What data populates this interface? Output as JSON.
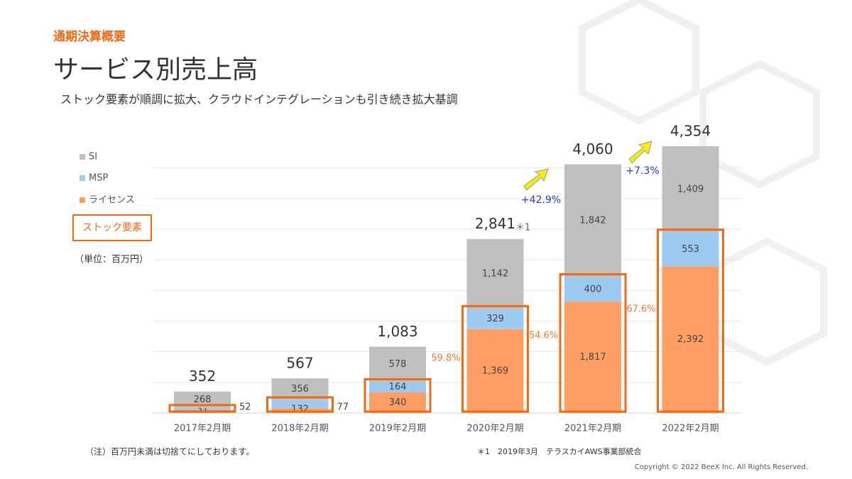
{
  "header": {
    "section": "通期決算概要",
    "title": "サービス別売上高",
    "subtitle": "ストック要素が順調に拡大、クラウドインテグレーションも引き続き拡大基調"
  },
  "chart_data": {
    "type": "stacked_bar",
    "categories": [
      "2017年2月期",
      "2018年2月期",
      "2019年2月期",
      "2020年2月期",
      "2021年2月期",
      "2022年2月期"
    ],
    "series": [
      {
        "name": "ライセンス",
        "color": "#ff9f66",
        "values": [
          52,
          77,
          340,
          1369,
          1817,
          2392
        ],
        "value_labels": [
          "52",
          "77",
          "340",
          "1,369",
          "1,817",
          "2,392"
        ]
      },
      {
        "name": "MSP",
        "color": "#9ccaf0",
        "values": [
          31,
          132,
          164,
          329,
          400,
          553
        ]
      },
      {
        "name": "SI",
        "color": "#bfbfbf",
        "values": [
          268,
          356,
          578,
          1142,
          1842,
          1409
        ],
        "value_labels": [
          "268",
          "356",
          "578",
          "1,142",
          "1,842",
          "1,409"
        ]
      }
    ],
    "totals": {
      "values": [
        352,
        567,
        1083,
        2841,
        4060,
        4354
      ],
      "value_labels": [
        "352",
        "567",
        "1,083",
        "2,841",
        "4,060",
        "4,354"
      ]
    },
    "ylim": [
      0,
      4500
    ],
    "yticks": [
      0,
      500,
      1000,
      1500,
      2000,
      2500,
      3000,
      3500,
      4000
    ],
    "grid": true,
    "stock_legend": "ストック要素",
    "unit": "（単位：百万円）",
    "annotations": {
      "stock_ratio": [
        "59.8%",
        "54.6%",
        "67.6%"
      ],
      "growth": [
        "+42.9%",
        "+7.3%"
      ],
      "note_mark": "＊1"
    }
  },
  "footer": {
    "note": "（注）百万円未満は切捨てにしております。",
    "footnote": "＊1　2019年3月　テラスカイAWS事業部統合",
    "copyright": "Copyright © 2022 BeeX Inc. All Rights Reserved."
  }
}
